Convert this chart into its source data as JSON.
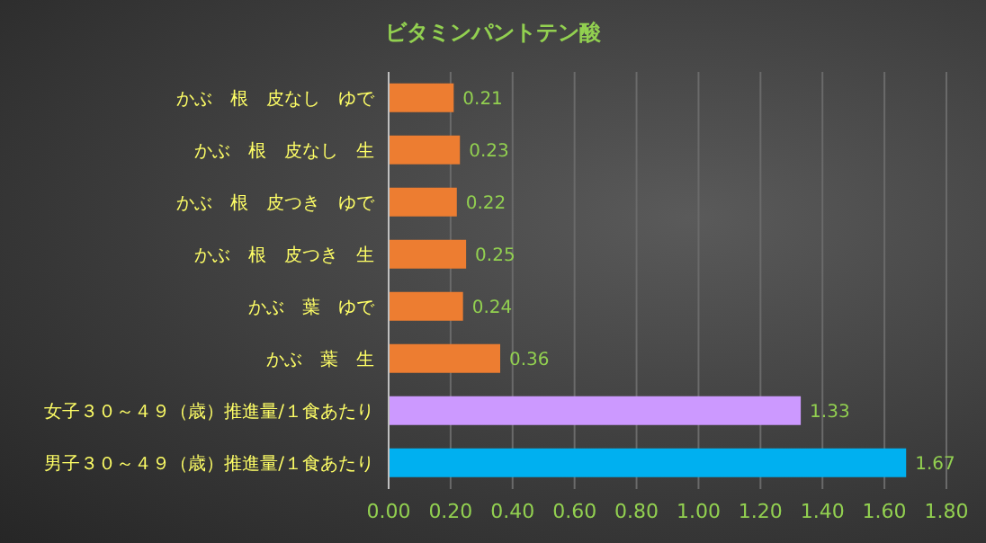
{
  "chart_data": {
    "type": "bar",
    "orientation": "horizontal",
    "title": "ビタミンパントテン酸",
    "categories": [
      "かぶ　根　皮なし　ゆで",
      "かぶ　根　皮なし　生",
      "かぶ　根　皮つき　ゆで",
      "かぶ　根　皮つき　生",
      "かぶ　葉　ゆで",
      "かぶ　葉　生",
      "女子３０～４９（歳）推進量/１食あたり",
      "男子３０～４９（歳）推進量/１食あたり"
    ],
    "values": [
      0.21,
      0.23,
      0.22,
      0.25,
      0.24,
      0.36,
      1.33,
      1.67
    ],
    "colors": [
      "#ed7d31",
      "#ed7d31",
      "#ed7d31",
      "#ed7d31",
      "#ed7d31",
      "#ed7d31",
      "#cc99ff",
      "#00b0f0"
    ],
    "xlim": [
      0,
      1.8
    ],
    "xticks": [
      {
        "value": 0,
        "label": "0.00"
      },
      {
        "value": 0.2,
        "label": "0.20"
      },
      {
        "value": 0.4,
        "label": "0.40"
      },
      {
        "value": 0.6,
        "label": "0.60"
      },
      {
        "value": 0.8,
        "label": "0.80"
      },
      {
        "value": 1,
        "label": "1.00"
      },
      {
        "value": 1.2,
        "label": "1.20"
      },
      {
        "value": 1.4,
        "label": "1.40"
      },
      {
        "value": 1.6,
        "label": "1.60"
      },
      {
        "value": 1.8,
        "label": "1.80"
      }
    ],
    "grid": "x",
    "data_labels": true
  }
}
